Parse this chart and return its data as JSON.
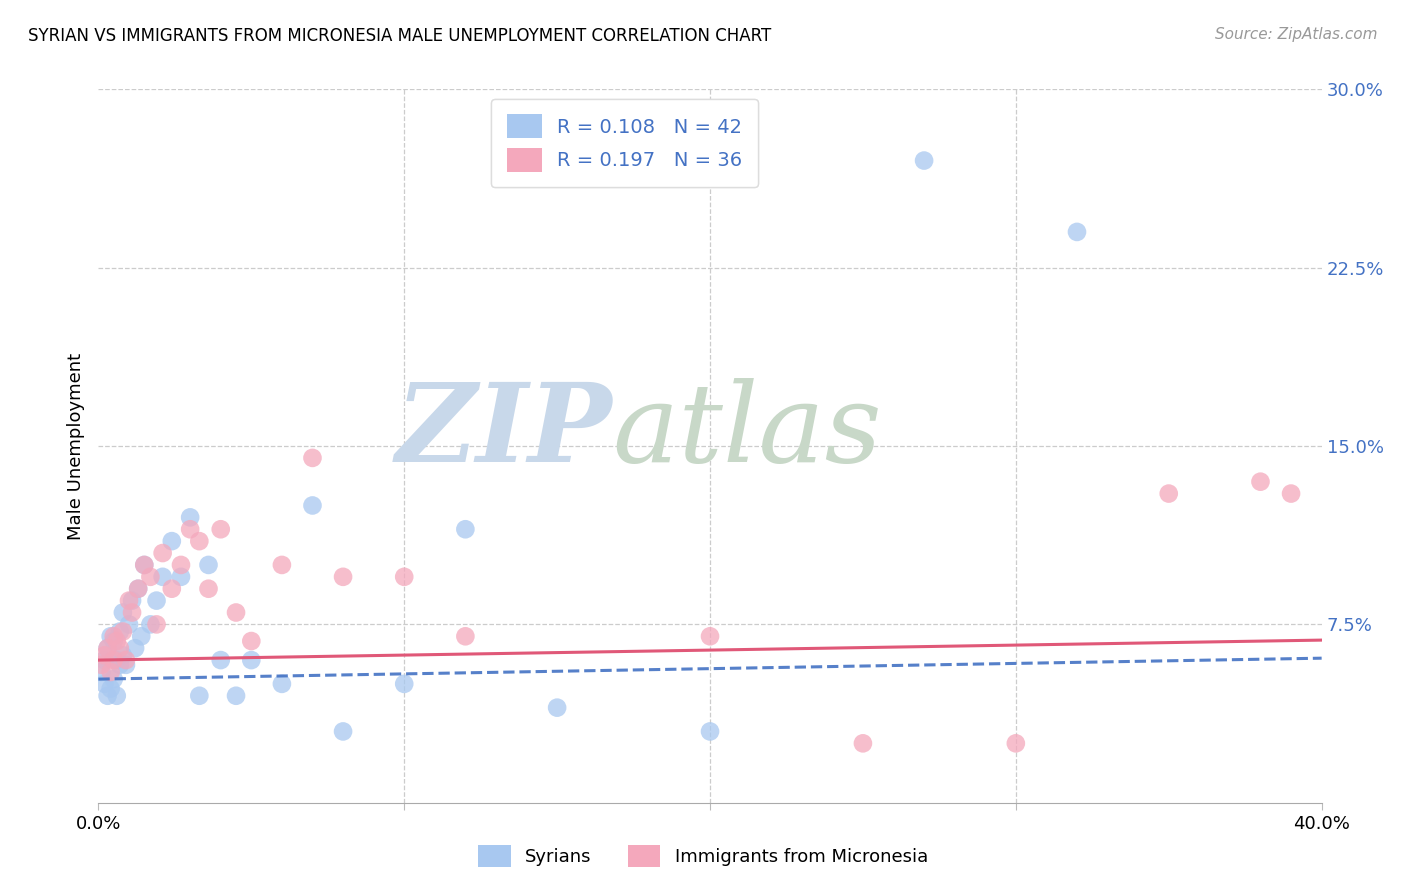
{
  "title": "SYRIAN VS IMMIGRANTS FROM MICRONESIA MALE UNEMPLOYMENT CORRELATION CHART",
  "source": "Source: ZipAtlas.com",
  "ylabel": "Male Unemployment",
  "xmin": 0.0,
  "xmax": 0.4,
  "ymin": 0.0,
  "ymax": 0.3,
  "ytick_vals": [
    0.075,
    0.15,
    0.225,
    0.3
  ],
  "ytick_labels": [
    "7.5%",
    "15.0%",
    "22.5%",
    "30.0%"
  ],
  "xtick_vals": [
    0.0,
    0.1,
    0.2,
    0.3,
    0.4
  ],
  "xtick_labels": [
    "0.0%",
    "",
    "",
    "",
    "40.0%"
  ],
  "legend_r1": "R = 0.108",
  "legend_n1": "N = 42",
  "legend_r2": "R = 0.197",
  "legend_n2": "N = 36",
  "label1": "Syrians",
  "label2": "Immigrants from Micronesia",
  "color_blue": "#A8C8F0",
  "color_pink": "#F4A8BC",
  "line_blue": "#4472C4",
  "line_pink": "#E05878",
  "tick_color": "#4472C4",
  "background": "#ffffff",
  "syrians_x": [
    0.001,
    0.002,
    0.002,
    0.003,
    0.003,
    0.004,
    0.004,
    0.005,
    0.005,
    0.006,
    0.006,
    0.007,
    0.007,
    0.008,
    0.008,
    0.009,
    0.01,
    0.011,
    0.012,
    0.013,
    0.014,
    0.015,
    0.017,
    0.019,
    0.021,
    0.024,
    0.027,
    0.03,
    0.033,
    0.036,
    0.04,
    0.045,
    0.05,
    0.06,
    0.07,
    0.08,
    0.1,
    0.12,
    0.15,
    0.2,
    0.27,
    0.32
  ],
  "syrians_y": [
    0.055,
    0.06,
    0.05,
    0.065,
    0.045,
    0.07,
    0.048,
    0.068,
    0.052,
    0.06,
    0.045,
    0.072,
    0.058,
    0.08,
    0.062,
    0.058,
    0.075,
    0.085,
    0.065,
    0.09,
    0.07,
    0.1,
    0.075,
    0.085,
    0.095,
    0.11,
    0.095,
    0.12,
    0.045,
    0.1,
    0.06,
    0.045,
    0.06,
    0.05,
    0.125,
    0.03,
    0.05,
    0.115,
    0.04,
    0.03,
    0.27,
    0.24
  ],
  "micronesia_x": [
    0.001,
    0.002,
    0.003,
    0.004,
    0.005,
    0.005,
    0.006,
    0.007,
    0.008,
    0.009,
    0.01,
    0.011,
    0.013,
    0.015,
    0.017,
    0.019,
    0.021,
    0.024,
    0.027,
    0.03,
    0.033,
    0.036,
    0.04,
    0.045,
    0.05,
    0.06,
    0.07,
    0.08,
    0.1,
    0.12,
    0.2,
    0.25,
    0.3,
    0.35,
    0.38,
    0.39
  ],
  "micronesia_y": [
    0.058,
    0.062,
    0.065,
    0.055,
    0.07,
    0.06,
    0.068,
    0.065,
    0.072,
    0.06,
    0.085,
    0.08,
    0.09,
    0.1,
    0.095,
    0.075,
    0.105,
    0.09,
    0.1,
    0.115,
    0.11,
    0.09,
    0.115,
    0.08,
    0.068,
    0.1,
    0.145,
    0.095,
    0.095,
    0.07,
    0.07,
    0.025,
    0.025,
    0.13,
    0.135,
    0.13
  ],
  "line_blue_intercept": 0.052,
  "line_blue_slope": 0.022,
  "line_pink_intercept": 0.06,
  "line_pink_slope": 0.021
}
